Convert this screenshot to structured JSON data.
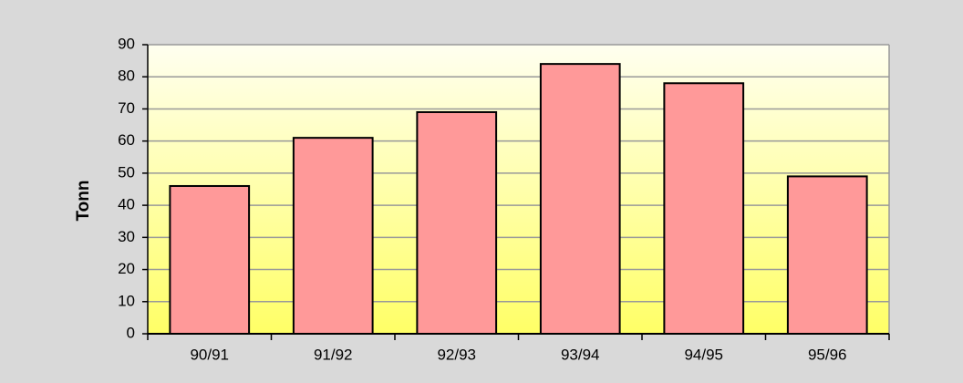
{
  "chart_data": {
    "type": "bar",
    "y_label": "Tonn",
    "categories": [
      "90/91",
      "91/92",
      "92/93",
      "93/94",
      "94/95",
      "95/96"
    ],
    "values": [
      46,
      61,
      69,
      84,
      78,
      49
    ],
    "color": "#ff9999",
    "ylim": [
      0,
      90
    ],
    "yticks": [
      0,
      10,
      20,
      30,
      40,
      50,
      60,
      70,
      80,
      90
    ],
    "grid": true
  }
}
